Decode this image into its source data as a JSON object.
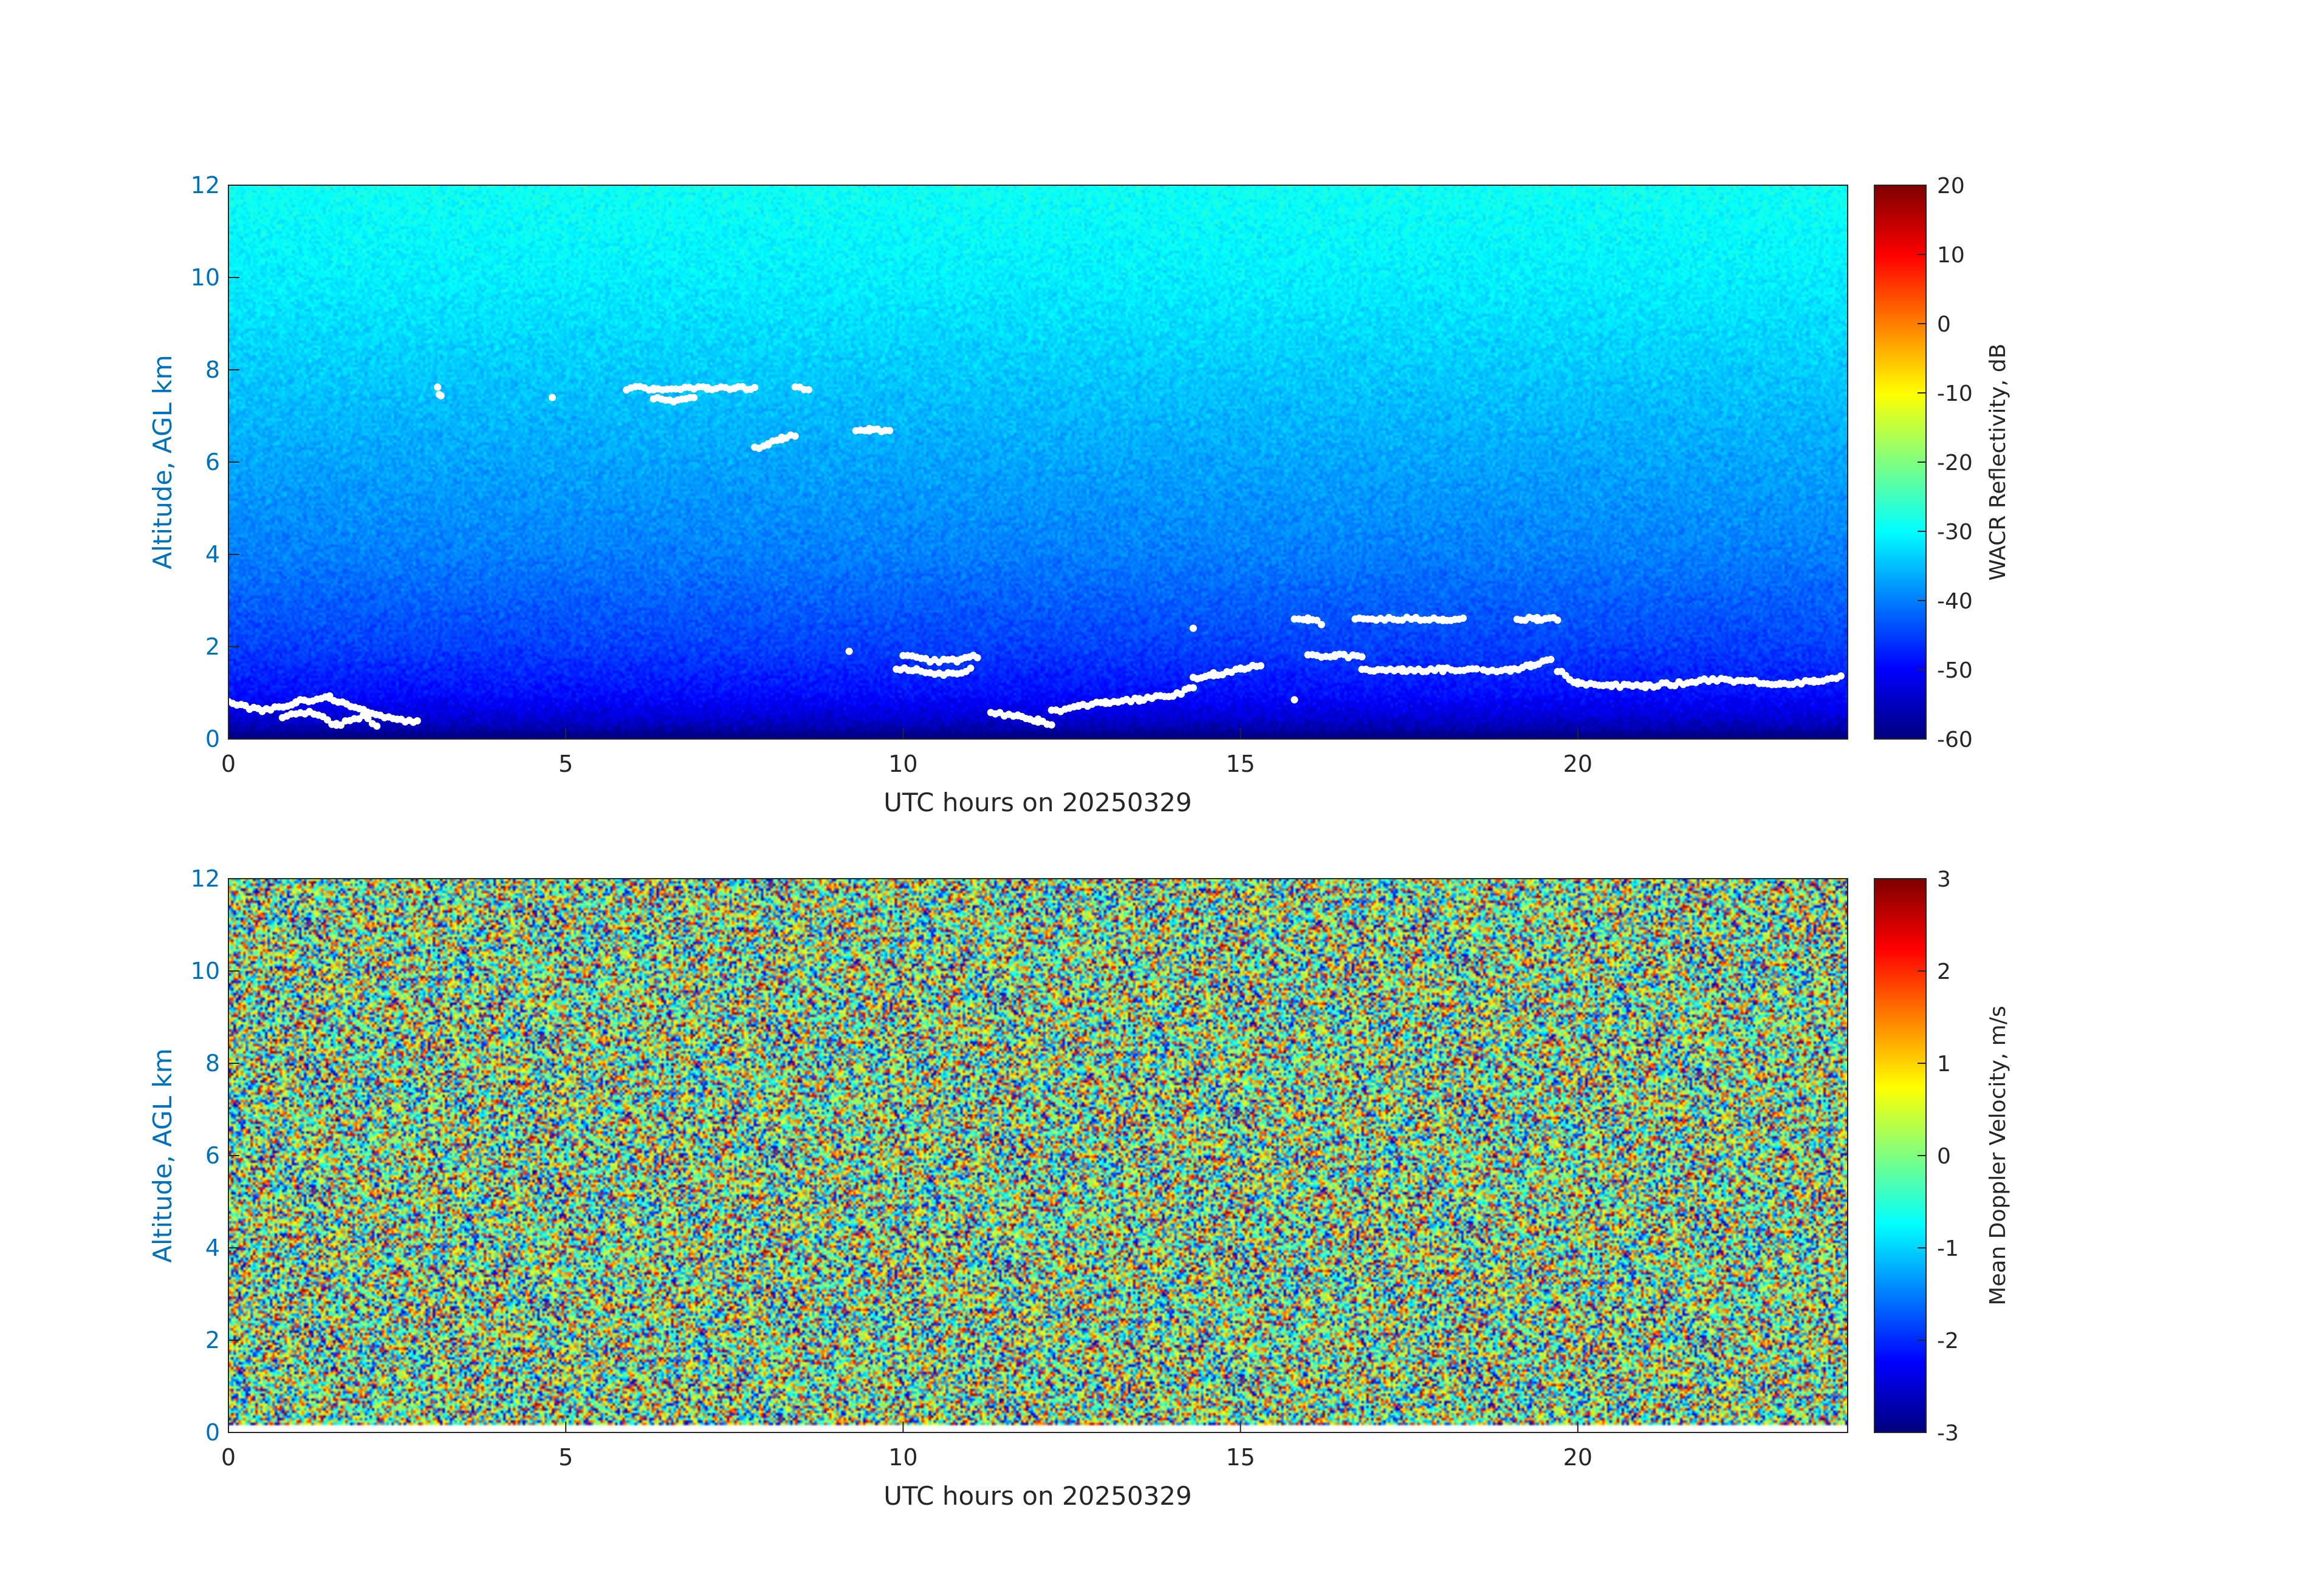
{
  "figure": {
    "panels": [
      {
        "id": "reflectivity",
        "colorbar_label": "WACR Reflectivity, dB",
        "colorbar_ticks": [
          "20",
          "10",
          "0",
          "-10",
          "-20",
          "-30",
          "-40",
          "-50",
          "-60"
        ]
      },
      {
        "id": "velocity",
        "colorbar_label": "Mean Doppler Velocity, m/s",
        "colorbar_ticks": [
          "3",
          "2",
          "1",
          "0",
          "-1",
          "-2",
          "-3"
        ]
      }
    ],
    "ylabel": "Altitude, AGL km",
    "xlabel": "UTC hours on 20250329",
    "yticks": [
      "0",
      "2",
      "4",
      "6",
      "8",
      "10",
      "12"
    ],
    "xticks": [
      "0",
      "5",
      "10",
      "15",
      "20"
    ],
    "colors": {
      "axis_text": "#0072BD",
      "cloud_mask": "#ffffff"
    }
  },
  "chart_data": [
    {
      "type": "heatmap",
      "title": "",
      "xlabel": "UTC hours on 20250329",
      "ylabel": "Altitude, AGL km",
      "xlim": [
        0,
        24
      ],
      "ylim": [
        0,
        12
      ],
      "colorbar": {
        "label": "WACR Reflectivity, dB",
        "range": [
          -60,
          20
        ],
        "colormap": "jet"
      },
      "reflectivity_profile": [
        {
          "altitude_km": 0.1,
          "dB": -58
        },
        {
          "altitude_km": 0.5,
          "dB": -53
        },
        {
          "altitude_km": 1.0,
          "dB": -49
        },
        {
          "altitude_km": 2.0,
          "dB": -45
        },
        {
          "altitude_km": 4.0,
          "dB": -40
        },
        {
          "altitude_km": 6.0,
          "dB": -37
        },
        {
          "altitude_km": 8.0,
          "dB": -34
        },
        {
          "altitude_km": 10.0,
          "dB": -31
        },
        {
          "altitude_km": 12.0,
          "dB": -29
        }
      ],
      "cloud_layers": [
        {
          "x": [
            0.0,
            0.5,
            1.0,
            1.5,
            2.0,
            2.5,
            2.8
          ],
          "y": [
            0.8,
            0.6,
            0.8,
            0.9,
            0.6,
            0.4,
            0.4
          ]
        },
        {
          "x": [
            0.8,
            1.2,
            1.6,
            2.0,
            2.2
          ],
          "y": [
            0.5,
            0.6,
            0.3,
            0.5,
            0.3
          ]
        },
        {
          "x": [
            3.1,
            3.15
          ],
          "y": [
            7.6,
            7.4
          ]
        },
        {
          "x": [
            4.8
          ],
          "y": [
            7.4
          ]
        },
        {
          "x": [
            5.9,
            6.3,
            6.7,
            7.1,
            7.5,
            7.8
          ],
          "y": [
            7.6,
            7.6,
            7.6,
            7.6,
            7.6,
            7.6
          ]
        },
        {
          "x": [
            6.3,
            6.6,
            6.9
          ],
          "y": [
            7.4,
            7.3,
            7.4
          ]
        },
        {
          "x": [
            8.4,
            8.6
          ],
          "y": [
            7.6,
            7.6
          ]
        },
        {
          "x": [
            7.8,
            8.0,
            8.2,
            8.4
          ],
          "y": [
            6.3,
            6.4,
            6.5,
            6.6
          ]
        },
        {
          "x": [
            9.3,
            9.5,
            9.8
          ],
          "y": [
            6.7,
            6.7,
            6.7
          ]
        },
        {
          "x": [
            9.2
          ],
          "y": [
            1.9
          ]
        },
        {
          "x": [
            9.9,
            10.2,
            10.6,
            11.0
          ],
          "y": [
            1.5,
            1.5,
            1.4,
            1.5
          ]
        },
        {
          "x": [
            10.0,
            10.4,
            10.8,
            11.1
          ],
          "y": [
            1.8,
            1.7,
            1.7,
            1.8
          ]
        },
        {
          "x": [
            11.3,
            11.7,
            12.0,
            12.2
          ],
          "y": [
            0.55,
            0.5,
            0.4,
            0.3
          ]
        },
        {
          "x": [
            12.2,
            12.6,
            13.0,
            13.5,
            14.0,
            14.3
          ],
          "y": [
            0.6,
            0.7,
            0.8,
            0.85,
            0.95,
            1.1
          ]
        },
        {
          "x": [
            14.3,
            14.6,
            15.0,
            15.3
          ],
          "y": [
            1.3,
            1.4,
            1.5,
            1.6
          ]
        },
        {
          "x": [
            14.3
          ],
          "y": [
            2.4
          ]
        },
        {
          "x": [
            15.8,
            16.0,
            16.2
          ],
          "y": [
            2.6,
            2.6,
            2.5
          ]
        },
        {
          "x": [
            16.7,
            17.2,
            17.6,
            18.0,
            18.3
          ],
          "y": [
            2.6,
            2.6,
            2.6,
            2.6,
            2.6
          ]
        },
        {
          "x": [
            19.1,
            19.4,
            19.7
          ],
          "y": [
            2.6,
            2.6,
            2.6
          ]
        },
        {
          "x": [
            16.0,
            16.4,
            16.8
          ],
          "y": [
            1.8,
            1.8,
            1.8
          ]
        },
        {
          "x": [
            16.8,
            17.4,
            18.0,
            18.5
          ],
          "y": [
            1.5,
            1.5,
            1.5,
            1.5
          ]
        },
        {
          "x": [
            18.6,
            19.0,
            19.3,
            19.6
          ],
          "y": [
            1.5,
            1.5,
            1.6,
            1.7
          ]
        },
        {
          "x": [
            15.8
          ],
          "y": [
            0.85
          ]
        },
        {
          "x": [
            19.7,
            20.0,
            20.5,
            21.0,
            21.5,
            22.0,
            22.5,
            23.0,
            23.5,
            23.9
          ],
          "y": [
            1.5,
            1.2,
            1.15,
            1.15,
            1.2,
            1.3,
            1.25,
            1.2,
            1.25,
            1.35
          ]
        }
      ]
    },
    {
      "type": "heatmap",
      "title": "",
      "xlabel": "UTC hours on 20250329",
      "ylabel": "Altitude, AGL km",
      "xlim": [
        0,
        24
      ],
      "ylim": [
        0,
        12
      ],
      "colorbar": {
        "label": "Mean Doppler Velocity, m/s",
        "range": [
          -3,
          3
        ],
        "colormap": "jet"
      },
      "field": "random noise spanning the full colour range at all times and altitudes"
    }
  ]
}
